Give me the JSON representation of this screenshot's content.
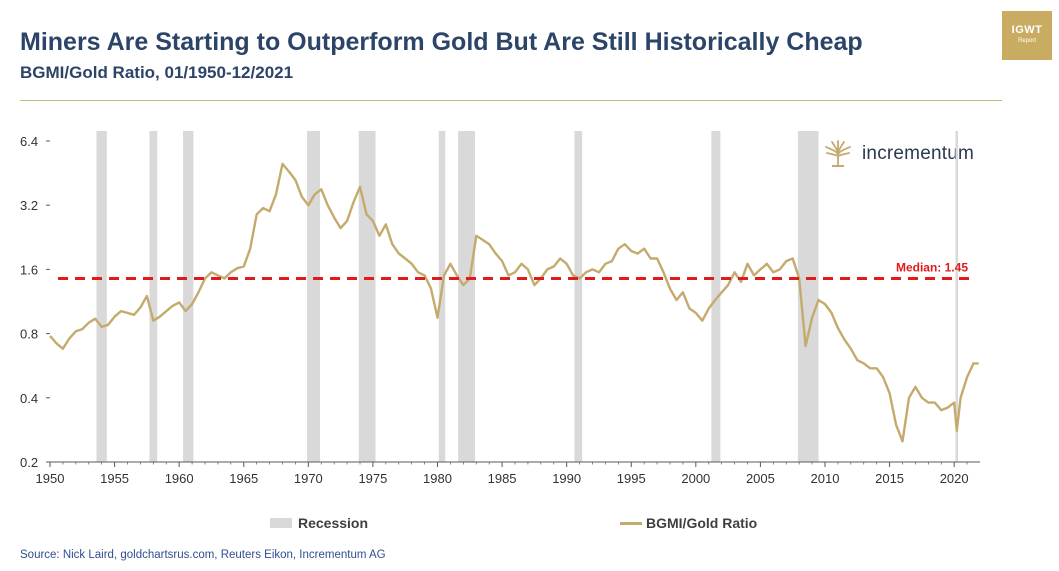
{
  "header": {
    "title": "Miners Are Starting to Outperform Gold But Are Still Historically Cheap",
    "subtitle": "BGMI/Gold Ratio, 01/1950-12/2021"
  },
  "badge": {
    "line1": "IGWT",
    "line2": "Report"
  },
  "brand": {
    "name": "incrementum"
  },
  "footer": {
    "source": "Source: Nick Laird, goldchartsrus.com, Reuters Eikon, Incrementum AG"
  },
  "colors": {
    "series": "#c4aa6d",
    "median": "#e01b1b",
    "recession": "#d9d9d9",
    "axis": "#595959"
  },
  "chart_data": {
    "type": "line",
    "title": "Miners Are Starting to Outperform Gold But Are Still Historically Cheap",
    "subtitle": "BGMI/Gold Ratio, 01/1950-12/2021",
    "y_scale": "log2",
    "ylim": [
      0.2,
      6.4
    ],
    "xlim": [
      1950,
      2022
    ],
    "y_ticks": [
      {
        "value": 6.4,
        "label": "6.4"
      },
      {
        "value": 3.2,
        "label": "3.2"
      },
      {
        "value": 1.6,
        "label": "1.6"
      },
      {
        "value": 0.8,
        "label": "0.8"
      },
      {
        "value": 0.4,
        "label": "0.4"
      },
      {
        "value": 0.2,
        "label": "0.2"
      }
    ],
    "x_ticks": [
      {
        "value": 1950,
        "label": "1950"
      },
      {
        "value": 1955,
        "label": "1955"
      },
      {
        "value": 1960,
        "label": "1960"
      },
      {
        "value": 1965,
        "label": "1965"
      },
      {
        "value": 1970,
        "label": "1970"
      },
      {
        "value": 1975,
        "label": "1975"
      },
      {
        "value": 1980,
        "label": "1980"
      },
      {
        "value": 1985,
        "label": "1985"
      },
      {
        "value": 1990,
        "label": "1990"
      },
      {
        "value": 1995,
        "label": "1995"
      },
      {
        "value": 2000,
        "label": "2000"
      },
      {
        "value": 2005,
        "label": "2005"
      },
      {
        "value": 2010,
        "label": "2010"
      },
      {
        "value": 2015,
        "label": "2015"
      },
      {
        "value": 2020,
        "label": "2020"
      }
    ],
    "median": {
      "value": 1.45,
      "label": "Median: 1.45"
    },
    "recessions": [
      [
        1953.6,
        1954.4
      ],
      [
        1957.7,
        1958.3
      ],
      [
        1960.3,
        1961.1
      ],
      [
        1969.9,
        1970.9
      ],
      [
        1973.9,
        1975.2
      ],
      [
        1980.1,
        1980.6
      ],
      [
        1981.6,
        1982.9
      ],
      [
        1990.6,
        1991.2
      ],
      [
        2001.2,
        2001.9
      ],
      [
        2007.9,
        2009.5
      ],
      [
        2020.1,
        2020.3
      ]
    ],
    "legend": [
      {
        "label": "Recession",
        "kind": "area"
      },
      {
        "label": "BGMI/Gold Ratio",
        "kind": "line"
      }
    ],
    "series": [
      {
        "name": "BGMI/Gold Ratio",
        "x": [
          1950.0,
          1950.5,
          1951.0,
          1951.5,
          1952.0,
          1952.5,
          1953.0,
          1953.5,
          1954.0,
          1954.5,
          1955.0,
          1955.5,
          1956.0,
          1956.5,
          1957.0,
          1957.5,
          1958.0,
          1958.5,
          1959.0,
          1959.5,
          1960.0,
          1960.5,
          1961.0,
          1961.5,
          1962.0,
          1962.5,
          1963.0,
          1963.5,
          1964.0,
          1964.5,
          1965.0,
          1965.5,
          1966.0,
          1966.5,
          1967.0,
          1967.5,
          1968.0,
          1968.5,
          1969.0,
          1969.5,
          1970.0,
          1970.5,
          1971.0,
          1971.5,
          1972.0,
          1972.5,
          1973.0,
          1973.5,
          1974.0,
          1974.5,
          1975.0,
          1975.5,
          1976.0,
          1976.5,
          1977.0,
          1977.5,
          1978.0,
          1978.5,
          1979.0,
          1979.5,
          1980.0,
          1980.5,
          1981.0,
          1981.5,
          1982.0,
          1982.5,
          1983.0,
          1983.5,
          1984.0,
          1984.5,
          1985.0,
          1985.5,
          1986.0,
          1986.5,
          1987.0,
          1987.5,
          1988.0,
          1988.5,
          1989.0,
          1989.5,
          1990.0,
          1990.5,
          1991.0,
          1991.5,
          1992.0,
          1992.5,
          1993.0,
          1993.5,
          1994.0,
          1994.5,
          1995.0,
          1995.5,
          1996.0,
          1996.5,
          1997.0,
          1997.5,
          1998.0,
          1998.5,
          1999.0,
          1999.5,
          2000.0,
          2000.5,
          2001.0,
          2001.5,
          2002.0,
          2002.5,
          2003.0,
          2003.5,
          2004.0,
          2004.5,
          2005.0,
          2005.5,
          2006.0,
          2006.5,
          2007.0,
          2007.5,
          2008.0,
          2008.5,
          2009.0,
          2009.5,
          2010.0,
          2010.5,
          2011.0,
          2011.5,
          2012.0,
          2012.5,
          2013.0,
          2013.5,
          2014.0,
          2014.5,
          2015.0,
          2015.5,
          2016.0,
          2016.5,
          2017.0,
          2017.5,
          2018.0,
          2018.5,
          2019.0,
          2019.5,
          2020.0,
          2020.2,
          2020.5,
          2021.0,
          2021.5,
          2021.9
        ],
        "values": [
          0.78,
          0.72,
          0.68,
          0.76,
          0.82,
          0.84,
          0.9,
          0.94,
          0.86,
          0.88,
          0.96,
          1.02,
          1.0,
          0.98,
          1.06,
          1.2,
          0.92,
          0.96,
          1.02,
          1.08,
          1.12,
          1.02,
          1.1,
          1.25,
          1.45,
          1.55,
          1.5,
          1.45,
          1.55,
          1.62,
          1.65,
          2.0,
          2.9,
          3.1,
          3.0,
          3.6,
          5.0,
          4.6,
          4.2,
          3.5,
          3.2,
          3.6,
          3.8,
          3.2,
          2.8,
          2.5,
          2.7,
          3.3,
          3.9,
          2.9,
          2.7,
          2.3,
          2.6,
          2.1,
          1.9,
          1.8,
          1.7,
          1.55,
          1.5,
          1.3,
          0.95,
          1.5,
          1.7,
          1.5,
          1.35,
          1.45,
          2.3,
          2.2,
          2.1,
          1.9,
          1.75,
          1.5,
          1.55,
          1.7,
          1.6,
          1.35,
          1.45,
          1.6,
          1.65,
          1.8,
          1.7,
          1.5,
          1.45,
          1.55,
          1.6,
          1.55,
          1.7,
          1.75,
          2.0,
          2.1,
          1.95,
          1.9,
          2.0,
          1.8,
          1.8,
          1.55,
          1.3,
          1.15,
          1.25,
          1.05,
          1.0,
          0.92,
          1.05,
          1.15,
          1.25,
          1.35,
          1.55,
          1.4,
          1.7,
          1.5,
          1.6,
          1.7,
          1.55,
          1.6,
          1.75,
          1.8,
          1.45,
          0.7,
          0.95,
          1.15,
          1.1,
          1.0,
          0.85,
          0.75,
          0.68,
          0.6,
          0.58,
          0.55,
          0.55,
          0.5,
          0.42,
          0.3,
          0.25,
          0.4,
          0.45,
          0.4,
          0.38,
          0.38,
          0.35,
          0.36,
          0.38,
          0.28,
          0.4,
          0.5,
          0.58,
          0.58
        ]
      }
    ]
  }
}
